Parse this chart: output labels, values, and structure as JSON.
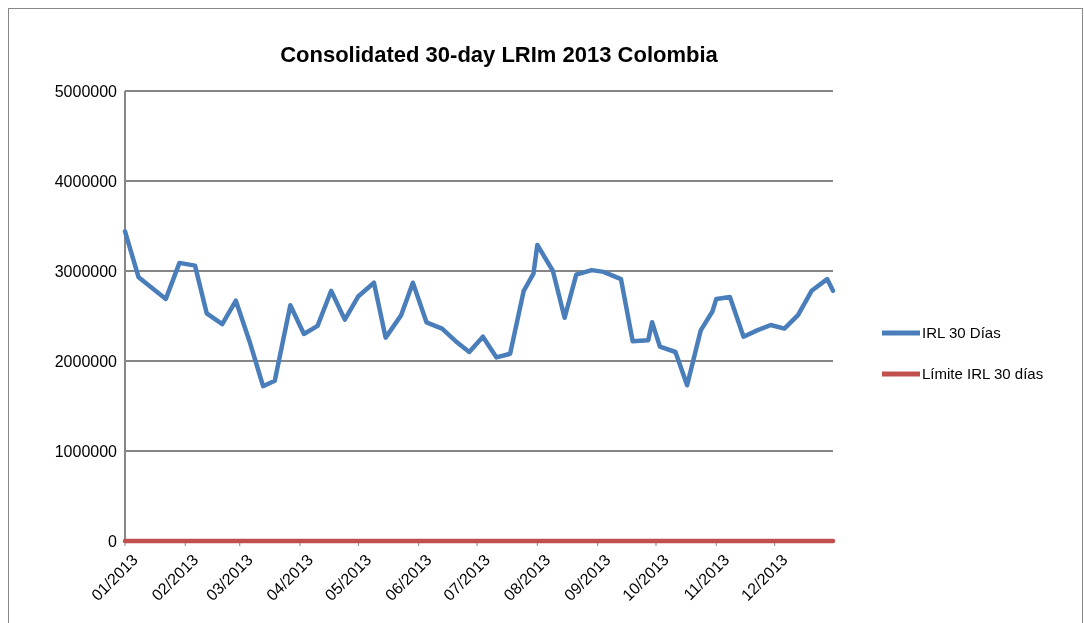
{
  "chart_data": {
    "type": "line",
    "title": "Consolidated 30-day LRIm 2013 Colombia",
    "xlim": [
      "2013-01-01",
      "2013-12-31"
    ],
    "xticks": [
      {
        "value": "2013-01-01",
        "label": "01/2013"
      },
      {
        "value": "2013-02-01",
        "label": "02/2013"
      },
      {
        "value": "2013-03-01",
        "label": "03/2013"
      },
      {
        "value": "2013-04-01",
        "label": "04/2013"
      },
      {
        "value": "2013-05-01",
        "label": "05/2013"
      },
      {
        "value": "2013-06-01",
        "label": "06/2013"
      },
      {
        "value": "2013-07-01",
        "label": "07/2013"
      },
      {
        "value": "2013-08-01",
        "label": "08/2013"
      },
      {
        "value": "2013-09-01",
        "label": "09/2013"
      },
      {
        "value": "2013-10-01",
        "label": "10/2013"
      },
      {
        "value": "2013-11-01",
        "label": "11/2013"
      },
      {
        "value": "2013-12-01",
        "label": "12/2013"
      }
    ],
    "ylim": [
      0,
      5000000
    ],
    "yticks": [
      0,
      1000000,
      2000000,
      3000000,
      4000000,
      5000000
    ],
    "grid": "y",
    "legend": "right",
    "line_style": "solid",
    "marker": "none",
    "series": [
      {
        "name": "IRL 30 Días",
        "color": "#4a7ebb",
        "x": [
          "2013-01-01",
          "2013-01-08",
          "2013-01-22",
          "2013-01-29",
          "2013-02-06",
          "2013-02-12",
          "2013-02-20",
          "2013-02-27",
          "2013-03-06",
          "2013-03-13",
          "2013-03-19",
          "2013-03-27",
          "2013-04-03",
          "2013-04-10",
          "2013-04-17",
          "2013-04-24",
          "2013-05-01",
          "2013-05-09",
          "2013-05-15",
          "2013-05-23",
          "2013-05-29",
          "2013-06-05",
          "2013-06-13",
          "2013-06-20",
          "2013-06-27",
          "2013-07-04",
          "2013-07-11",
          "2013-07-18",
          "2013-07-25",
          "2013-07-30",
          "2013-08-01",
          "2013-08-09",
          "2013-08-15",
          "2013-08-21",
          "2013-08-29",
          "2013-09-04",
          "2013-09-13",
          "2013-09-19",
          "2013-09-27",
          "2013-09-29",
          "2013-10-03",
          "2013-10-11",
          "2013-10-17",
          "2013-10-24",
          "2013-10-30",
          "2013-11-01",
          "2013-11-08",
          "2013-11-15",
          "2013-11-22",
          "2013-11-29",
          "2013-12-06",
          "2013-12-13",
          "2013-12-20",
          "2013-12-28",
          "2013-12-31"
        ],
        "values": [
          3440000,
          2930000,
          2690000,
          3090000,
          3060000,
          2530000,
          2410000,
          2670000,
          2220000,
          1720000,
          1780000,
          2620000,
          2300000,
          2390000,
          2780000,
          2460000,
          2720000,
          2870000,
          2260000,
          2510000,
          2870000,
          2430000,
          2360000,
          2220000,
          2100000,
          2270000,
          2040000,
          2080000,
          2780000,
          2970000,
          3290000,
          3000000,
          2480000,
          2960000,
          3010000,
          2990000,
          2910000,
          2220000,
          2230000,
          2430000,
          2160000,
          2100000,
          1730000,
          2340000,
          2550000,
          2690000,
          2710000,
          2270000,
          2340000,
          2400000,
          2360000,
          2510000,
          2780000,
          2910000,
          2780000
        ]
      },
      {
        "name": "Límite IRL  30 días",
        "color": "#c0504d",
        "x": [
          "2013-01-01",
          "2013-12-31"
        ],
        "values": [
          0,
          0
        ]
      }
    ]
  }
}
